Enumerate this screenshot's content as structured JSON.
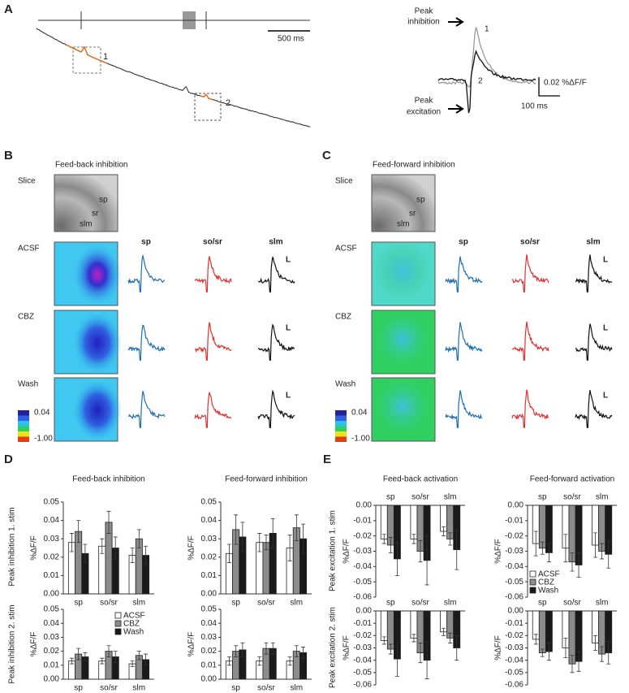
{
  "panel_labels": [
    "A",
    "B",
    "C",
    "D",
    "E"
  ],
  "panel_a": {
    "scale_time": "500 ms",
    "box_labels": [
      "1",
      "2"
    ],
    "peak_inhibition": [
      "Peak",
      "inhibition"
    ],
    "peak_excitation": [
      "Peak",
      "excitation"
    ],
    "trace_labels": [
      "1",
      "2"
    ],
    "scale_amplitude": "0.02 %ΔF/F",
    "scale_time_inset": "100 ms"
  },
  "panel_b": {
    "title": "Feed-back inhibition",
    "rows": [
      "Slice",
      "ACSF",
      "CBZ",
      "Wash"
    ],
    "slice_labels": [
      "sp",
      "sr",
      "slm"
    ],
    "columns": [
      "sp",
      "so/sr",
      "slm"
    ],
    "scale_marks": [
      "L",
      "L",
      "L"
    ],
    "colorbar": [
      "0.04",
      "-1.00"
    ]
  },
  "panel_c": {
    "title": "Feed-forward inhibition",
    "rows": [
      "Slice",
      "ACSF",
      "CBZ",
      "Wash"
    ],
    "slice_labels": [
      "sp",
      "sr",
      "slm"
    ],
    "columns": [
      "sp",
      "so/sr",
      "slm"
    ],
    "scale_marks": [
      "L",
      "L",
      "L"
    ],
    "colorbar": [
      "0.04",
      "-1.00"
    ]
  },
  "row_labels_d": [
    "Peak inhibition 1. stim",
    "Peak inhibition 2. stim"
  ],
  "row_labels_e": [
    "Peak excitation 1. stim",
    "Peak excitation 2. stim"
  ],
  "chart_data": [
    {
      "type": "bar",
      "title": "Feed-back inhibition",
      "ylabel": "%ΔF/F",
      "categories": [
        "sp",
        "so/sr",
        "slm"
      ],
      "series": [
        {
          "name": "ACSF",
          "color": "#ffffff",
          "values": [
            0.028,
            0.026,
            0.021
          ],
          "errors": [
            0.005,
            0.004,
            0.004
          ]
        },
        {
          "name": "CBZ",
          "color": "#8c8c8c",
          "values": [
            0.034,
            0.039,
            0.03
          ],
          "errors": [
            0.006,
            0.006,
            0.005
          ]
        },
        {
          "name": "Wash",
          "color": "#1a1a1a",
          "values": [
            0.022,
            0.025,
            0.021
          ],
          "errors": [
            0.005,
            0.006,
            0.005
          ]
        }
      ],
      "ylim": [
        0,
        0.05
      ],
      "yticks": [
        {
          "value": 0,
          "label": "0.00"
        },
        0.01,
        0.02,
        0.03,
        0.04,
        0.05
      ]
    },
    {
      "type": "bar",
      "title": "Feed-forward inhibition",
      "ylabel": "%ΔF/F",
      "categories": [
        "sp",
        "so/sr",
        "slm"
      ],
      "series": [
        {
          "name": "ACSF",
          "color": "#ffffff",
          "values": [
            0.022,
            0.028,
            0.025
          ],
          "errors": [
            0.005,
            0.005,
            0.007
          ]
        },
        {
          "name": "CBZ",
          "color": "#8c8c8c",
          "values": [
            0.035,
            0.028,
            0.036
          ],
          "errors": [
            0.008,
            0.004,
            0.007
          ]
        },
        {
          "name": "Wash",
          "color": "#1a1a1a",
          "values": [
            0.031,
            0.033,
            0.03
          ],
          "errors": [
            0.008,
            0.008,
            0.008
          ]
        }
      ],
      "ylim": [
        0,
        0.05
      ],
      "yticks": [
        {
          "value": 0,
          "label": "0.00"
        },
        0.01,
        0.02,
        0.03,
        0.04,
        0.05
      ]
    },
    {
      "type": "bar",
      "ylabel": "%ΔF/F",
      "categories": [
        "sp",
        "so/sr",
        "slm"
      ],
      "series": [
        {
          "name": "ACSF",
          "color": "#ffffff",
          "values": [
            0.013,
            0.013,
            0.011
          ],
          "errors": [
            0.002,
            0.002,
            0.002
          ]
        },
        {
          "name": "CBZ",
          "color": "#8c8c8c",
          "values": [
            0.018,
            0.02,
            0.017
          ],
          "errors": [
            0.004,
            0.004,
            0.003
          ]
        },
        {
          "name": "Wash",
          "color": "#1a1a1a",
          "values": [
            0.016,
            0.016,
            0.014
          ],
          "errors": [
            0.003,
            0.004,
            0.004
          ]
        }
      ],
      "ylim": [
        0,
        0.05
      ],
      "yticks": [
        {
          "value": 0,
          "label": "0.00"
        },
        0.01,
        0.02,
        0.03,
        0.04,
        0.05
      ],
      "legend": "upper right"
    },
    {
      "type": "bar",
      "ylabel": "%ΔF/F",
      "categories": [
        "sp",
        "so/sr",
        "slm"
      ],
      "series": [
        {
          "name": "ACSF",
          "color": "#ffffff",
          "values": [
            0.013,
            0.013,
            0.013
          ],
          "errors": [
            0.003,
            0.003,
            0.003
          ]
        },
        {
          "name": "CBZ",
          "color": "#8c8c8c",
          "values": [
            0.02,
            0.022,
            0.02
          ],
          "errors": [
            0.004,
            0.004,
            0.004
          ]
        },
        {
          "name": "Wash",
          "color": "#1a1a1a",
          "values": [
            0.021,
            0.022,
            0.019
          ],
          "errors": [
            0.005,
            0.004,
            0.004
          ]
        }
      ],
      "ylim": [
        0,
        0.05
      ],
      "yticks": [
        {
          "value": 0,
          "label": "0.00"
        },
        0.01,
        0.02,
        0.03,
        0.04,
        0.05
      ]
    },
    {
      "type": "bar",
      "title": "Feed-back activation",
      "ylabel": "%ΔF/F",
      "categories": [
        "sp",
        "so/sr",
        "slm"
      ],
      "series": [
        {
          "name": "ACSF",
          "color": "#ffffff",
          "values": [
            -0.022,
            -0.022,
            -0.017
          ],
          "errors": [
            0.003,
            0.003,
            0.003
          ]
        },
        {
          "name": "CBZ",
          "color": "#8c8c8c",
          "values": [
            -0.026,
            -0.03,
            -0.022
          ],
          "errors": [
            0.005,
            0.007,
            0.004
          ]
        },
        {
          "name": "Wash",
          "color": "#1a1a1a",
          "values": [
            -0.035,
            -0.036,
            -0.029
          ],
          "errors": [
            0.011,
            0.016,
            0.013
          ]
        }
      ],
      "ylim": [
        -0.06,
        0
      ],
      "yticks": [
        {
          "value": 0,
          "label": "0.00"
        },
        -0.01,
        -0.02,
        -0.03,
        -0.04,
        -0.05,
        -0.06
      ]
    },
    {
      "type": "bar",
      "title": "Feed-forward activation",
      "ylabel": "%ΔF/F",
      "categories": [
        "sp",
        "so/sr",
        "slm"
      ],
      "series": [
        {
          "name": "ACSF",
          "color": "#ffffff",
          "values": [
            -0.025,
            -0.028,
            -0.026
          ],
          "errors": [
            0.008,
            0.009,
            0.008
          ]
        },
        {
          "name": "CBZ",
          "color": "#8c8c8c",
          "values": [
            -0.028,
            -0.037,
            -0.03
          ],
          "errors": [
            0.004,
            0.006,
            0.005
          ]
        },
        {
          "name": "Wash",
          "color": "#1a1a1a",
          "values": [
            -0.031,
            -0.039,
            -0.032
          ],
          "errors": [
            0.006,
            0.008,
            0.009
          ]
        }
      ],
      "ylim": [
        -0.06,
        0
      ],
      "yticks": [
        {
          "value": 0,
          "label": "0.00"
        },
        -0.01,
        -0.02,
        -0.03,
        -0.04,
        -0.05,
        -0.06
      ],
      "legend": "lower left"
    },
    {
      "type": "bar",
      "ylabel": "%ΔF/F",
      "categories": [
        "sp",
        "so/sr",
        "slm"
      ],
      "series": [
        {
          "name": "ACSF",
          "color": "#ffffff",
          "values": [
            -0.024,
            -0.022,
            -0.017
          ],
          "errors": [
            0.003,
            0.003,
            0.003
          ]
        },
        {
          "name": "CBZ",
          "color": "#8c8c8c",
          "values": [
            -0.031,
            -0.034,
            -0.022
          ],
          "errors": [
            0.004,
            0.008,
            0.004
          ]
        },
        {
          "name": "Wash",
          "color": "#1a1a1a",
          "values": [
            -0.039,
            -0.04,
            -0.03
          ],
          "errors": [
            0.014,
            0.015,
            0.01
          ]
        }
      ],
      "ylim": [
        -0.06,
        0
      ],
      "yticks": [
        {
          "value": 0,
          "label": "0.00"
        },
        -0.01,
        -0.02,
        -0.03,
        -0.04,
        -0.05,
        -0.06
      ]
    },
    {
      "type": "bar",
      "ylabel": "%ΔF/F",
      "categories": [
        "sp",
        "so/sr",
        "slm"
      ],
      "series": [
        {
          "name": "ACSF",
          "color": "#ffffff",
          "values": [
            -0.023,
            -0.03,
            -0.026
          ],
          "errors": [
            0.004,
            0.008,
            0.006
          ]
        },
        {
          "name": "CBZ",
          "color": "#8c8c8c",
          "values": [
            -0.034,
            -0.043,
            -0.035
          ],
          "errors": [
            0.003,
            0.007,
            0.006
          ]
        },
        {
          "name": "Wash",
          "color": "#1a1a1a",
          "values": [
            -0.033,
            -0.041,
            -0.034
          ],
          "errors": [
            0.007,
            0.008,
            0.009
          ]
        }
      ],
      "ylim": [
        -0.06,
        0
      ],
      "yticks": [
        {
          "value": 0,
          "label": "0.00"
        },
        -0.01,
        -0.02,
        -0.03,
        -0.04,
        -0.05,
        -0.06
      ]
    }
  ]
}
